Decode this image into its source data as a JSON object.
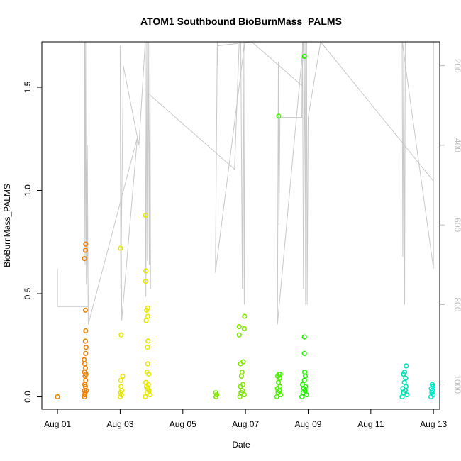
{
  "chart_data": {
    "type": "scatter",
    "title": "ATOM1 Southbound BioBurnMass_PALMS",
    "xlabel": "Date",
    "ylabel": "BioBurnMass_PALMS",
    "x_ticks": [
      {
        "label": "Aug 01",
        "value": 1
      },
      {
        "label": "Aug 03",
        "value": 3
      },
      {
        "label": "Aug 05",
        "value": 5
      },
      {
        "label": "Aug 07",
        "value": 7
      },
      {
        "label": "Aug 09",
        "value": 9
      },
      {
        "label": "Aug 11",
        "value": 11
      },
      {
        "label": "Aug 13",
        "value": 13
      }
    ],
    "y_ticks": [
      {
        "label": "0.0",
        "value": 0.0
      },
      {
        "label": "0.5",
        "value": 0.5
      },
      {
        "label": "1.0",
        "value": 1.0
      },
      {
        "label": "1.5",
        "value": 1.5
      }
    ],
    "y2_ticks": [
      {
        "label": "200",
        "value": 200
      },
      {
        "label": "400",
        "value": 400
      },
      {
        "label": "600",
        "value": 600
      },
      {
        "label": "800",
        "value": 800
      },
      {
        "label": "1000",
        "value": 1000
      }
    ],
    "xlim": [
      0.5,
      13.2
    ],
    "ylim": [
      -0.06,
      1.72
    ],
    "y2lim": [
      1063,
      140
    ],
    "secondary_axis_color": "#bdbdbd",
    "trace_color": "#c8c8c8",
    "grid": false,
    "legend": "none",
    "points": [
      {
        "x": 1.0,
        "y": 0.0,
        "color": "#f08000"
      },
      {
        "x": 1.86,
        "y": 0.0,
        "color": "#f08000"
      },
      {
        "x": 1.87,
        "y": 0.01,
        "color": "#f08000"
      },
      {
        "x": 1.88,
        "y": 0.02,
        "color": "#f08000"
      },
      {
        "x": 1.86,
        "y": 0.03,
        "color": "#f08000"
      },
      {
        "x": 1.92,
        "y": 0.03,
        "color": "#f08000"
      },
      {
        "x": 1.89,
        "y": 0.05,
        "color": "#f08000"
      },
      {
        "x": 1.87,
        "y": 0.06,
        "color": "#f08000"
      },
      {
        "x": 1.9,
        "y": 0.08,
        "color": "#f08000"
      },
      {
        "x": 1.88,
        "y": 0.1,
        "color": "#f08000"
      },
      {
        "x": 1.91,
        "y": 0.11,
        "color": "#f08000"
      },
      {
        "x": 1.86,
        "y": 0.12,
        "color": "#f08000"
      },
      {
        "x": 1.89,
        "y": 0.14,
        "color": "#f08000"
      },
      {
        "x": 1.87,
        "y": 0.16,
        "color": "#f08000"
      },
      {
        "x": 1.85,
        "y": 0.18,
        "color": "#f08000"
      },
      {
        "x": 1.9,
        "y": 0.21,
        "color": "#f08000"
      },
      {
        "x": 1.91,
        "y": 0.24,
        "color": "#f08000"
      },
      {
        "x": 1.89,
        "y": 0.27,
        "color": "#f08000"
      },
      {
        "x": 1.9,
        "y": 0.32,
        "color": "#f08000"
      },
      {
        "x": 1.89,
        "y": 0.42,
        "color": "#f08000"
      },
      {
        "x": 1.86,
        "y": 0.67,
        "color": "#f08000"
      },
      {
        "x": 1.89,
        "y": 0.71,
        "color": "#f08000"
      },
      {
        "x": 1.9,
        "y": 0.74,
        "color": "#f08000"
      },
      {
        "x": 3.0,
        "y": 0.0,
        "color": "#e6e600"
      },
      {
        "x": 3.04,
        "y": 0.01,
        "color": "#e6e600"
      },
      {
        "x": 3.02,
        "y": 0.02,
        "color": "#e6e600"
      },
      {
        "x": 3.05,
        "y": 0.03,
        "color": "#e6e600"
      },
      {
        "x": 3.03,
        "y": 0.05,
        "color": "#e6e600"
      },
      {
        "x": 3.02,
        "y": 0.08,
        "color": "#e6e600"
      },
      {
        "x": 3.08,
        "y": 0.1,
        "color": "#e6e600"
      },
      {
        "x": 3.03,
        "y": 0.3,
        "color": "#e6e600"
      },
      {
        "x": 3.01,
        "y": 0.72,
        "color": "#e6e600"
      },
      {
        "x": 3.8,
        "y": 0.0,
        "color": "#e6e600"
      },
      {
        "x": 3.95,
        "y": 0.01,
        "color": "#e6e600"
      },
      {
        "x": 3.86,
        "y": 0.02,
        "color": "#e6e600"
      },
      {
        "x": 3.92,
        "y": 0.03,
        "color": "#e6e600"
      },
      {
        "x": 3.88,
        "y": 0.04,
        "color": "#e6e600"
      },
      {
        "x": 3.84,
        "y": 0.05,
        "color": "#e6e600"
      },
      {
        "x": 3.9,
        "y": 0.06,
        "color": "#e6e600"
      },
      {
        "x": 3.82,
        "y": 0.07,
        "color": "#e6e600"
      },
      {
        "x": 3.91,
        "y": 0.11,
        "color": "#e6e600"
      },
      {
        "x": 3.86,
        "y": 0.12,
        "color": "#e6e600"
      },
      {
        "x": 3.88,
        "y": 0.16,
        "color": "#e6e600"
      },
      {
        "x": 3.87,
        "y": 0.24,
        "color": "#e6e600"
      },
      {
        "x": 3.89,
        "y": 0.27,
        "color": "#e6e600"
      },
      {
        "x": 3.83,
        "y": 0.37,
        "color": "#e6e600"
      },
      {
        "x": 3.88,
        "y": 0.39,
        "color": "#e6e600"
      },
      {
        "x": 3.84,
        "y": 0.42,
        "color": "#e6e600"
      },
      {
        "x": 3.88,
        "y": 0.43,
        "color": "#e6e600"
      },
      {
        "x": 3.81,
        "y": 0.56,
        "color": "#e6e600"
      },
      {
        "x": 3.82,
        "y": 0.61,
        "color": "#e6e600"
      },
      {
        "x": 3.81,
        "y": 0.88,
        "color": "#e6e600"
      },
      {
        "x": 6.06,
        "y": 0.0,
        "color": "#7fe600"
      },
      {
        "x": 6.08,
        "y": 0.01,
        "color": "#7fe600"
      },
      {
        "x": 6.05,
        "y": 0.02,
        "color": "#7fe600"
      },
      {
        "x": 6.82,
        "y": 0.0,
        "color": "#7fe600"
      },
      {
        "x": 6.96,
        "y": 0.01,
        "color": "#7fe600"
      },
      {
        "x": 6.86,
        "y": 0.02,
        "color": "#7fe600"
      },
      {
        "x": 6.9,
        "y": 0.03,
        "color": "#7fe600"
      },
      {
        "x": 6.84,
        "y": 0.05,
        "color": "#7fe600"
      },
      {
        "x": 6.92,
        "y": 0.06,
        "color": "#7fe600"
      },
      {
        "x": 6.87,
        "y": 0.1,
        "color": "#7fe600"
      },
      {
        "x": 6.89,
        "y": 0.12,
        "color": "#7fe600"
      },
      {
        "x": 6.84,
        "y": 0.16,
        "color": "#7fe600"
      },
      {
        "x": 6.93,
        "y": 0.17,
        "color": "#7fe600"
      },
      {
        "x": 6.8,
        "y": 0.3,
        "color": "#7fe600"
      },
      {
        "x": 6.96,
        "y": 0.33,
        "color": "#7fe600"
      },
      {
        "x": 6.8,
        "y": 0.34,
        "color": "#7fe600"
      },
      {
        "x": 6.97,
        "y": 0.39,
        "color": "#7fe600"
      },
      {
        "x": 8.0,
        "y": 0.0,
        "color": "#4cf000"
      },
      {
        "x": 8.12,
        "y": 0.01,
        "color": "#4cf000"
      },
      {
        "x": 8.04,
        "y": 0.02,
        "color": "#4cf000"
      },
      {
        "x": 8.08,
        "y": 0.03,
        "color": "#4cf000"
      },
      {
        "x": 8.02,
        "y": 0.04,
        "color": "#4cf000"
      },
      {
        "x": 8.1,
        "y": 0.05,
        "color": "#4cf000"
      },
      {
        "x": 8.05,
        "y": 0.07,
        "color": "#4cf000"
      },
      {
        "x": 8.09,
        "y": 0.09,
        "color": "#4cf000"
      },
      {
        "x": 8.03,
        "y": 0.1,
        "color": "#4cf000"
      },
      {
        "x": 8.07,
        "y": 0.11,
        "color": "#4cf000"
      },
      {
        "x": 8.11,
        "y": 0.11,
        "color": "#4cf000"
      },
      {
        "x": 8.06,
        "y": 1.36,
        "color": "#4cf000"
      },
      {
        "x": 8.8,
        "y": 0.0,
        "color": "#22f000"
      },
      {
        "x": 8.95,
        "y": 0.01,
        "color": "#22f000"
      },
      {
        "x": 8.84,
        "y": 0.02,
        "color": "#22f000"
      },
      {
        "x": 8.9,
        "y": 0.03,
        "color": "#22f000"
      },
      {
        "x": 8.86,
        "y": 0.04,
        "color": "#22f000"
      },
      {
        "x": 8.92,
        "y": 0.05,
        "color": "#22f000"
      },
      {
        "x": 8.82,
        "y": 0.06,
        "color": "#22f000"
      },
      {
        "x": 8.88,
        "y": 0.08,
        "color": "#22f000"
      },
      {
        "x": 8.91,
        "y": 0.1,
        "color": "#22f000"
      },
      {
        "x": 8.89,
        "y": 0.12,
        "color": "#22f000"
      },
      {
        "x": 8.88,
        "y": 0.21,
        "color": "#22f000"
      },
      {
        "x": 8.88,
        "y": 0.29,
        "color": "#22f000"
      },
      {
        "x": 8.88,
        "y": 1.65,
        "color": "#22f000"
      },
      {
        "x": 12.0,
        "y": 0.0,
        "color": "#00e0b0"
      },
      {
        "x": 12.15,
        "y": 0.01,
        "color": "#00e0b0"
      },
      {
        "x": 12.05,
        "y": 0.02,
        "color": "#00e0b0"
      },
      {
        "x": 12.1,
        "y": 0.03,
        "color": "#00e0b0"
      },
      {
        "x": 12.02,
        "y": 0.04,
        "color": "#00e0b0"
      },
      {
        "x": 12.12,
        "y": 0.05,
        "color": "#00e0b0"
      },
      {
        "x": 12.07,
        "y": 0.07,
        "color": "#00e0b0"
      },
      {
        "x": 12.11,
        "y": 0.09,
        "color": "#00e0b0"
      },
      {
        "x": 12.04,
        "y": 0.11,
        "color": "#00e0b0"
      },
      {
        "x": 12.08,
        "y": 0.12,
        "color": "#00e0b0"
      },
      {
        "x": 12.13,
        "y": 0.15,
        "color": "#00e0b0"
      },
      {
        "x": 12.92,
        "y": 0.0,
        "color": "#00e6c8"
      },
      {
        "x": 12.99,
        "y": 0.01,
        "color": "#00e6c8"
      },
      {
        "x": 12.95,
        "y": 0.02,
        "color": "#00e6c8"
      },
      {
        "x": 12.97,
        "y": 0.03,
        "color": "#00e6c8"
      },
      {
        "x": 12.93,
        "y": 0.04,
        "color": "#00e6c8"
      },
      {
        "x": 12.98,
        "y": 0.05,
        "color": "#00e6c8"
      },
      {
        "x": 12.96,
        "y": 0.06,
        "color": "#00e6c8"
      }
    ],
    "trace": [
      [
        1.0,
        710
      ],
      [
        1.0,
        805
      ],
      [
        1.98,
        805
      ],
      [
        1.98,
        780
      ],
      [
        1.85,
        140
      ],
      [
        1.85,
        660
      ],
      [
        1.87,
        140
      ],
      [
        1.88,
        700
      ],
      [
        1.9,
        140
      ],
      [
        1.92,
        750
      ],
      [
        1.95,
        400
      ],
      [
        1.98,
        850
      ],
      [
        3.55,
        380
      ],
      [
        3.05,
        840
      ],
      [
        3.05,
        830
      ],
      [
        3.0,
        150
      ],
      [
        3.02,
        760
      ],
      [
        3.1,
        200
      ],
      [
        3.6,
        400
      ],
      [
        3.8,
        140
      ],
      [
        3.82,
        780
      ],
      [
        3.85,
        140
      ],
      [
        3.87,
        690
      ],
      [
        3.9,
        140
      ],
      [
        3.93,
        700
      ],
      [
        3.95,
        140
      ],
      [
        3.97,
        760
      ],
      [
        3.9,
        270
      ],
      [
        6.65,
        460
      ],
      [
        6.8,
        140
      ],
      [
        6.85,
        140
      ],
      [
        6.9,
        760
      ],
      [
        6.93,
        140
      ],
      [
        6.96,
        800
      ],
      [
        6.98,
        140
      ],
      [
        6.04,
        720
      ],
      [
        6.1,
        140
      ],
      [
        6.12,
        200
      ],
      [
        6.1,
        150
      ],
      [
        7.2,
        140
      ],
      [
        8.8,
        250
      ],
      [
        8.85,
        140
      ],
      [
        8.02,
        850
      ],
      [
        8.05,
        190
      ],
      [
        8.07,
        600
      ],
      [
        8.1,
        330
      ],
      [
        8.8,
        330
      ],
      [
        8.82,
        140
      ],
      [
        8.85,
        760
      ],
      [
        8.9,
        140
      ],
      [
        8.92,
        800
      ],
      [
        8.95,
        140
      ],
      [
        8.97,
        800
      ],
      [
        9.0,
        330
      ],
      [
        9.4,
        140
      ],
      [
        13.0,
        490
      ],
      [
        13.0,
        140
      ],
      [
        13.0,
        710
      ],
      [
        12.0,
        140
      ],
      [
        12.02,
        680
      ],
      [
        12.05,
        140
      ],
      [
        12.08,
        800
      ],
      [
        12.1,
        140
      ]
    ]
  }
}
